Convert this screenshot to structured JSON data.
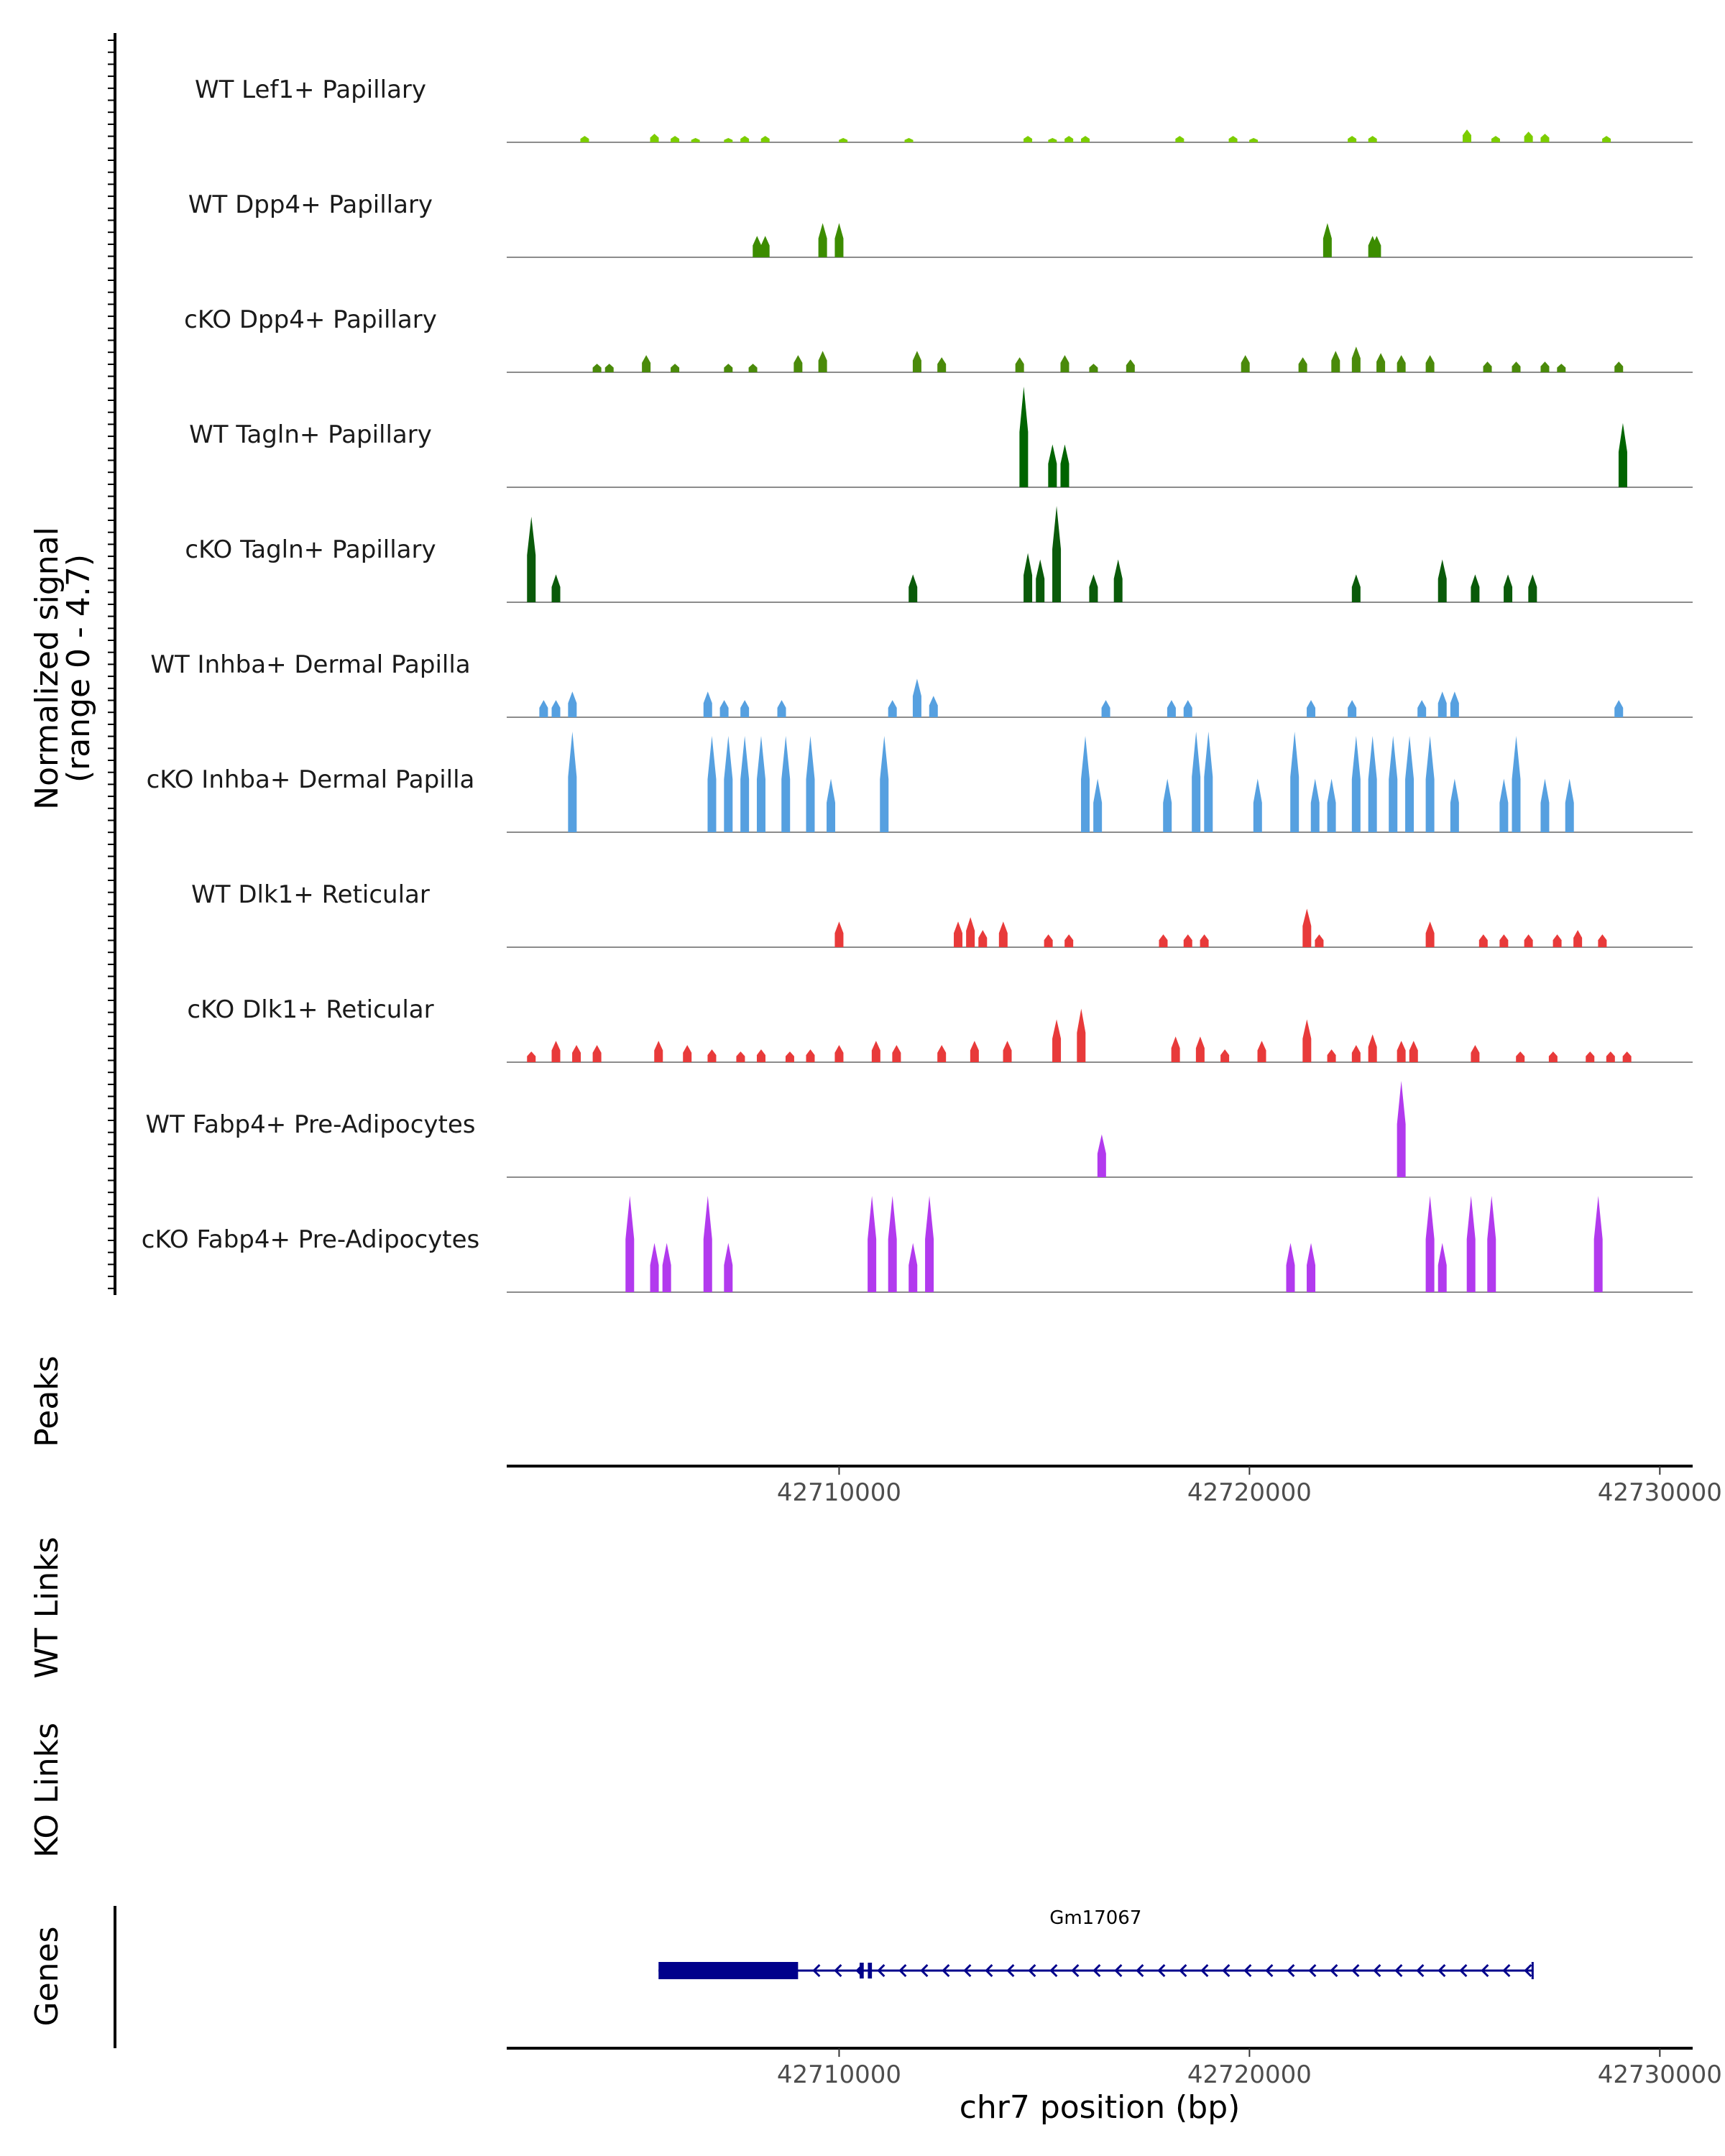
{
  "chart_data": {
    "type": "area",
    "title": "",
    "chromosome": "chr7",
    "xlim": [
      42701900,
      42730800
    ],
    "xlabel": "chr7 position (bp)",
    "x_ticks": [
      42710000,
      42720000,
      42730000
    ],
    "x_tick_labels": [
      "42710000",
      "42720000",
      "42730000"
    ],
    "ylabel_line1": "Normalized signal",
    "ylabel_line2": "(range 0 - 4.7)",
    "ylim": [
      0,
      4.7
    ],
    "tracks": [
      {
        "name": "WT Lef1+ Papillary",
        "color": "#7CCD00",
        "peaks": [
          [
            42703800,
            0.3
          ],
          [
            42705500,
            0.4
          ],
          [
            42706000,
            0.3
          ],
          [
            42706500,
            0.2
          ],
          [
            42707300,
            0.2
          ],
          [
            42707700,
            0.3
          ],
          [
            42708200,
            0.3
          ],
          [
            42710100,
            0.2
          ],
          [
            42711700,
            0.2
          ],
          [
            42714600,
            0.3
          ],
          [
            42715200,
            0.2
          ],
          [
            42715600,
            0.3
          ],
          [
            42716000,
            0.3
          ],
          [
            42718300,
            0.3
          ],
          [
            42719600,
            0.3
          ],
          [
            42720100,
            0.2
          ],
          [
            42722500,
            0.3
          ],
          [
            42723000,
            0.3
          ],
          [
            42725300,
            0.6
          ],
          [
            42726000,
            0.3
          ],
          [
            42726800,
            0.5
          ],
          [
            42727200,
            0.4
          ],
          [
            42728700,
            0.3
          ]
        ]
      },
      {
        "name": "WT Dpp4+ Papillary",
        "color": "#3C8C00",
        "peaks": [
          [
            42708000,
            1.0
          ],
          [
            42708200,
            1.0
          ],
          [
            42709600,
            1.6
          ],
          [
            42710000,
            1.6
          ],
          [
            42721900,
            1.6
          ],
          [
            42723000,
            1.0
          ],
          [
            42723100,
            1.0
          ]
        ]
      },
      {
        "name": "cKO Dpp4+ Papillary",
        "color": "#4A8A0A",
        "peaks": [
          [
            42704100,
            0.4
          ],
          [
            42704400,
            0.4
          ],
          [
            42705300,
            0.8
          ],
          [
            42706000,
            0.4
          ],
          [
            42707300,
            0.4
          ],
          [
            42707900,
            0.4
          ],
          [
            42709000,
            0.8
          ],
          [
            42709600,
            1.0
          ],
          [
            42711900,
            1.0
          ],
          [
            42712500,
            0.7
          ],
          [
            42714400,
            0.7
          ],
          [
            42715500,
            0.8
          ],
          [
            42716200,
            0.4
          ],
          [
            42717100,
            0.6
          ],
          [
            42719900,
            0.8
          ],
          [
            42721300,
            0.7
          ],
          [
            42722100,
            1.0
          ],
          [
            42722600,
            1.2
          ],
          [
            42723200,
            0.9
          ],
          [
            42723700,
            0.8
          ],
          [
            42724400,
            0.8
          ],
          [
            42725800,
            0.5
          ],
          [
            42726500,
            0.5
          ],
          [
            42727200,
            0.5
          ],
          [
            42727600,
            0.4
          ],
          [
            42729000,
            0.5
          ]
        ]
      },
      {
        "name": "WT Tagln+ Papillary",
        "color": "#006400",
        "peaks": [
          [
            42714500,
            4.7
          ],
          [
            42715200,
            2.0
          ],
          [
            42715500,
            2.0
          ],
          [
            42729100,
            3.0
          ]
        ]
      },
      {
        "name": "cKO Tagln+ Papillary",
        "color": "#0A5A0A",
        "peaks": [
          [
            42702500,
            4.0
          ],
          [
            42703100,
            1.3
          ],
          [
            42711800,
            1.3
          ],
          [
            42714600,
            2.3
          ],
          [
            42714900,
            2.0
          ],
          [
            42715300,
            4.5
          ],
          [
            42716200,
            1.3
          ],
          [
            42716800,
            2.0
          ],
          [
            42722600,
            1.3
          ],
          [
            42724700,
            2.0
          ],
          [
            42725500,
            1.3
          ],
          [
            42726300,
            1.3
          ],
          [
            42726900,
            1.3
          ]
        ]
      },
      {
        "name": "WT Inhba+ Dermal Papilla",
        "color": "#56A0E0",
        "peaks": [
          [
            42702800,
            0.8
          ],
          [
            42703100,
            0.8
          ],
          [
            42703500,
            1.2
          ],
          [
            42706800,
            1.2
          ],
          [
            42707200,
            0.8
          ],
          [
            42707700,
            0.8
          ],
          [
            42708600,
            0.8
          ],
          [
            42711300,
            0.8
          ],
          [
            42711900,
            1.8
          ],
          [
            42712300,
            1.0
          ],
          [
            42716500,
            0.8
          ],
          [
            42718100,
            0.8
          ],
          [
            42718500,
            0.8
          ],
          [
            42721500,
            0.8
          ],
          [
            42722500,
            0.8
          ],
          [
            42724200,
            0.8
          ],
          [
            42724700,
            1.2
          ],
          [
            42725000,
            1.2
          ],
          [
            42729000,
            0.8
          ]
        ]
      },
      {
        "name": "cKO Inhba+ Dermal Papilla",
        "color": "#56A0E0",
        "peaks": [
          [
            42703500,
            4.7
          ],
          [
            42706900,
            4.5
          ],
          [
            42707300,
            4.5
          ],
          [
            42707700,
            4.5
          ],
          [
            42708100,
            4.5
          ],
          [
            42708700,
            4.5
          ],
          [
            42709300,
            4.5
          ],
          [
            42709800,
            2.5
          ],
          [
            42711100,
            4.5
          ],
          [
            42716000,
            4.5
          ],
          [
            42716300,
            2.5
          ],
          [
            42718000,
            2.5
          ],
          [
            42718700,
            4.7
          ],
          [
            42719000,
            4.7
          ],
          [
            42720200,
            2.5
          ],
          [
            42721100,
            4.7
          ],
          [
            42721600,
            2.5
          ],
          [
            42722000,
            2.5
          ],
          [
            42722600,
            4.5
          ],
          [
            42723000,
            4.5
          ],
          [
            42723500,
            4.5
          ],
          [
            42723900,
            4.5
          ],
          [
            42724400,
            4.5
          ],
          [
            42725000,
            2.5
          ],
          [
            42726200,
            2.5
          ],
          [
            42726500,
            4.5
          ],
          [
            42727200,
            2.5
          ],
          [
            42727800,
            2.5
          ]
        ]
      },
      {
        "name": "WT Dlk1+ Reticular",
        "color": "#E83A3A",
        "peaks": [
          [
            42710000,
            1.2
          ],
          [
            42712900,
            1.2
          ],
          [
            42713200,
            1.4
          ],
          [
            42713500,
            0.8
          ],
          [
            42714000,
            1.2
          ],
          [
            42715100,
            0.6
          ],
          [
            42715600,
            0.6
          ],
          [
            42717900,
            0.6
          ],
          [
            42718500,
            0.6
          ],
          [
            42718900,
            0.6
          ],
          [
            42721400,
            1.8
          ],
          [
            42721700,
            0.6
          ],
          [
            42724400,
            1.2
          ],
          [
            42725700,
            0.6
          ],
          [
            42726200,
            0.6
          ],
          [
            42726800,
            0.6
          ],
          [
            42727500,
            0.6
          ],
          [
            42728000,
            0.8
          ],
          [
            42728600,
            0.6
          ]
        ]
      },
      {
        "name": "cKO Dlk1+ Reticular",
        "color": "#E83A3A",
        "peaks": [
          [
            42702500,
            0.5
          ],
          [
            42703100,
            1.0
          ],
          [
            42703600,
            0.8
          ],
          [
            42704100,
            0.8
          ],
          [
            42705600,
            1.0
          ],
          [
            42706300,
            0.8
          ],
          [
            42706900,
            0.6
          ],
          [
            42707600,
            0.5
          ],
          [
            42708100,
            0.6
          ],
          [
            42708800,
            0.5
          ],
          [
            42709300,
            0.6
          ],
          [
            42710000,
            0.8
          ],
          [
            42710900,
            1.0
          ],
          [
            42711400,
            0.8
          ],
          [
            42712500,
            0.8
          ],
          [
            42713300,
            1.0
          ],
          [
            42714100,
            1.0
          ],
          [
            42715300,
            2.0
          ],
          [
            42715900,
            2.5
          ],
          [
            42718200,
            1.2
          ],
          [
            42718800,
            1.2
          ],
          [
            42719400,
            0.6
          ],
          [
            42720300,
            1.0
          ],
          [
            42721400,
            2.0
          ],
          [
            42722000,
            0.6
          ],
          [
            42722600,
            0.8
          ],
          [
            42723000,
            1.3
          ],
          [
            42723700,
            1.0
          ],
          [
            42724000,
            1.0
          ],
          [
            42725500,
            0.8
          ],
          [
            42726600,
            0.5
          ],
          [
            42727400,
            0.5
          ],
          [
            42728300,
            0.5
          ],
          [
            42728800,
            0.5
          ],
          [
            42729200,
            0.5
          ]
        ]
      },
      {
        "name": "WT Fabp4+ Pre-Adipocytes",
        "color": "#B23AEE",
        "peaks": [
          [
            42716400,
            2.0
          ],
          [
            42723700,
            4.5
          ]
        ]
      },
      {
        "name": "cKO Fabp4+ Pre-Adipocytes",
        "color": "#B23AEE",
        "peaks": [
          [
            42704900,
            4.5
          ],
          [
            42705500,
            2.3
          ],
          [
            42705800,
            2.3
          ],
          [
            42706800,
            4.5
          ],
          [
            42707300,
            2.3
          ],
          [
            42710800,
            4.5
          ],
          [
            42711300,
            4.5
          ],
          [
            42711800,
            2.3
          ],
          [
            42712200,
            4.5
          ],
          [
            42721000,
            2.3
          ],
          [
            42721500,
            2.3
          ],
          [
            42724400,
            4.5
          ],
          [
            42724700,
            2.3
          ],
          [
            42725400,
            4.5
          ],
          [
            42725900,
            4.5
          ],
          [
            42728500,
            4.5
          ]
        ]
      }
    ],
    "panels": {
      "peaks": "Peaks",
      "wt_links": "WT Links",
      "ko_links": "KO Links",
      "genes": "Genes"
    },
    "gene": {
      "name": "Gm17067",
      "strand": "-",
      "start": 42705600,
      "end": 42726900,
      "exons": [
        [
          42705600,
          42709000
        ],
        [
          42710500,
          42710600
        ],
        [
          42710700,
          42710800
        ]
      ]
    }
  }
}
